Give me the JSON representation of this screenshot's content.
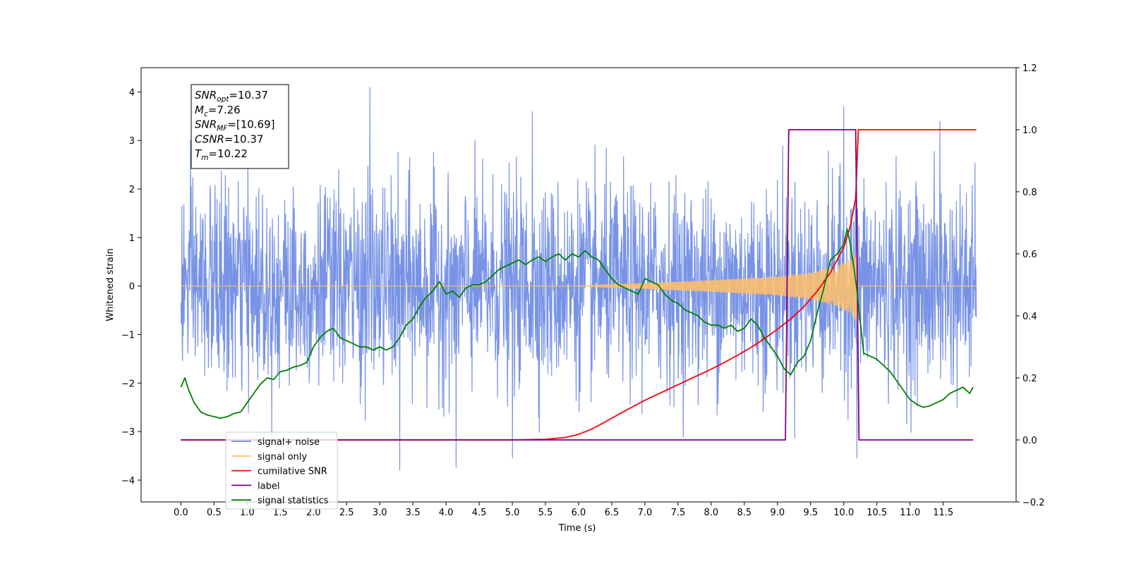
{
  "chart_data": {
    "type": "line",
    "xlabel": "Time (s)",
    "ylabel": "Whitened strain",
    "xlim": [
      -0.6,
      12.6
    ],
    "x_ticks": [
      "0.0",
      "0.5",
      "1.0",
      "1.5",
      "2.0",
      "2.5",
      "3.0",
      "3.5",
      "4.0",
      "4.5",
      "5.0",
      "5.5",
      "6.0",
      "6.5",
      "7.0",
      "7.5",
      "8.0",
      "8.5",
      "9.0",
      "9.5",
      "10.0",
      "10.5",
      "11.0",
      "11.5"
    ],
    "y_left": {
      "lim": [
        -4.45,
        4.5
      ],
      "ticks": [
        "4",
        "3",
        "2",
        "1",
        "0",
        "−1",
        "−2",
        "−3",
        "−4"
      ]
    },
    "y_right": {
      "lim": [
        -0.2,
        1.2
      ],
      "ticks": [
        "1.2",
        "1.0",
        "0.8",
        "0.6",
        "0.4",
        "0.2",
        "0.0",
        "−0.2"
      ]
    },
    "grid": false,
    "legend": {
      "placement": "lower-left",
      "entries": [
        {
          "label": "signal+ noise",
          "color": "#6c8ae4"
        },
        {
          "label": "signal only",
          "color": "#ffbf69"
        },
        {
          "label": "cumilative SNR",
          "color": "#ff0000"
        },
        {
          "label": "label",
          "color": "#800080"
        },
        {
          "label": "signal statistics",
          "color": "#008000"
        }
      ]
    },
    "annotation": {
      "lines": [
        {
          "sym": "SNR",
          "sub": "opt",
          "rest": "=10.37"
        },
        {
          "sym": "M",
          "sub": "c",
          "rest": "=7.26"
        },
        {
          "sym": "SNR",
          "sub": "MF",
          "rest": "=[10.69]"
        },
        {
          "sym": "CSNR",
          "sub": "",
          "rest": "=10.37"
        },
        {
          "sym": "T",
          "sub": "m",
          "rest": "=10.22"
        }
      ]
    },
    "series": [
      {
        "name": "signal+ noise",
        "axis": "left",
        "color": "#6c8ae4",
        "x_range": [
          0,
          12
        ],
        "y_range_approx": [
          -3.8,
          4.1
        ],
        "peaks": [
          {
            "x": 2.85,
            "y": 4.1
          },
          {
            "x": 5.3,
            "y": 3.6
          },
          {
            "x": 10.0,
            "y": 3.7
          },
          {
            "x": 11.45,
            "y": 3.4
          },
          {
            "x": 3.3,
            "y": -3.8
          },
          {
            "x": 4.15,
            "y": -3.75
          },
          {
            "x": 5.0,
            "y": -3.55
          },
          {
            "x": 10.2,
            "y": -3.55
          }
        ]
      },
      {
        "name": "signal only",
        "axis": "left",
        "color": "#ffbf69",
        "chirp_start": 6.0,
        "merger_time": 10.22,
        "envelope": [
          [
            6.0,
            0.0
          ],
          [
            6.5,
            0.03
          ],
          [
            7.0,
            0.06
          ],
          [
            7.5,
            0.09
          ],
          [
            8.0,
            0.12
          ],
          [
            8.5,
            0.16
          ],
          [
            9.0,
            0.2
          ],
          [
            9.5,
            0.28
          ],
          [
            9.9,
            0.42
          ],
          [
            10.1,
            0.58
          ],
          [
            10.2,
            0.75
          ],
          [
            10.22,
            0.0
          ]
        ]
      },
      {
        "name": "cumilative SNR",
        "axis": "right",
        "color": "#ff0000",
        "x": [
          0,
          5.0,
          5.5,
          5.8,
          6.0,
          6.2,
          6.4,
          6.6,
          6.8,
          7.0,
          7.2,
          7.4,
          7.6,
          7.8,
          8.0,
          8.2,
          8.4,
          8.6,
          8.8,
          9.0,
          9.2,
          9.4,
          9.6,
          9.8,
          10.0,
          10.1,
          10.18,
          10.22,
          12.0
        ],
        "y": [
          0,
          0,
          0.002,
          0.008,
          0.018,
          0.035,
          0.058,
          0.082,
          0.105,
          0.128,
          0.148,
          0.168,
          0.188,
          0.208,
          0.228,
          0.25,
          0.273,
          0.298,
          0.326,
          0.357,
          0.39,
          0.43,
          0.48,
          0.54,
          0.62,
          0.69,
          0.78,
          1.0,
          1.0
        ]
      },
      {
        "name": "label",
        "axis": "right",
        "color": "#800080",
        "x": [
          0,
          9.12,
          9.17,
          10.18,
          10.23,
          11.95
        ],
        "y": [
          0,
          0,
          1,
          1,
          0,
          0
        ]
      },
      {
        "name": "signal statistics",
        "axis": "right",
        "color": "#008000",
        "x": [
          0,
          0.06,
          0.12,
          0.2,
          0.3,
          0.4,
          0.5,
          0.6,
          0.7,
          0.8,
          0.9,
          1.0,
          1.1,
          1.2,
          1.3,
          1.4,
          1.5,
          1.6,
          1.7,
          1.8,
          1.9,
          2.0,
          2.1,
          2.2,
          2.3,
          2.4,
          2.5,
          2.6,
          2.7,
          2.8,
          2.9,
          3.0,
          3.1,
          3.2,
          3.3,
          3.4,
          3.5,
          3.6,
          3.7,
          3.8,
          3.9,
          4.0,
          4.1,
          4.2,
          4.3,
          4.4,
          4.5,
          4.6,
          4.7,
          4.8,
          4.9,
          5.0,
          5.1,
          5.2,
          5.3,
          5.4,
          5.5,
          5.6,
          5.7,
          5.8,
          5.9,
          6.0,
          6.1,
          6.2,
          6.3,
          6.4,
          6.5,
          6.6,
          6.7,
          6.8,
          6.9,
          7.0,
          7.1,
          7.2,
          7.3,
          7.4,
          7.5,
          7.6,
          7.7,
          7.8,
          7.9,
          8.0,
          8.1,
          8.2,
          8.3,
          8.4,
          8.5,
          8.6,
          8.7,
          8.8,
          8.9,
          9.0,
          9.1,
          9.2,
          9.3,
          9.4,
          9.5,
          9.6,
          9.7,
          9.8,
          9.9,
          10.0,
          10.05,
          10.1,
          10.15,
          10.2,
          10.25,
          10.3,
          10.4,
          10.5,
          10.6,
          10.7,
          10.8,
          10.9,
          11.0,
          11.1,
          11.2,
          11.3,
          11.4,
          11.5,
          11.6,
          11.7,
          11.8,
          11.9,
          11.95
        ],
        "y": [
          0.17,
          0.2,
          0.16,
          0.12,
          0.09,
          0.08,
          0.075,
          0.07,
          0.075,
          0.085,
          0.09,
          0.12,
          0.15,
          0.18,
          0.2,
          0.195,
          0.22,
          0.225,
          0.235,
          0.24,
          0.25,
          0.3,
          0.33,
          0.35,
          0.36,
          0.33,
          0.32,
          0.31,
          0.3,
          0.3,
          0.29,
          0.3,
          0.29,
          0.3,
          0.33,
          0.37,
          0.39,
          0.43,
          0.46,
          0.48,
          0.51,
          0.47,
          0.48,
          0.46,
          0.49,
          0.5,
          0.5,
          0.51,
          0.53,
          0.55,
          0.56,
          0.57,
          0.58,
          0.565,
          0.58,
          0.59,
          0.575,
          0.59,
          0.6,
          0.58,
          0.6,
          0.59,
          0.61,
          0.59,
          0.58,
          0.55,
          0.52,
          0.5,
          0.49,
          0.48,
          0.47,
          0.52,
          0.51,
          0.5,
          0.47,
          0.45,
          0.44,
          0.42,
          0.41,
          0.4,
          0.38,
          0.37,
          0.37,
          0.36,
          0.37,
          0.35,
          0.36,
          0.39,
          0.37,
          0.33,
          0.3,
          0.27,
          0.23,
          0.21,
          0.25,
          0.27,
          0.32,
          0.41,
          0.49,
          0.58,
          0.6,
          0.63,
          0.68,
          0.63,
          0.56,
          0.48,
          0.38,
          0.28,
          0.27,
          0.26,
          0.24,
          0.22,
          0.19,
          0.16,
          0.13,
          0.115,
          0.105,
          0.11,
          0.12,
          0.13,
          0.15,
          0.16,
          0.17,
          0.15,
          0.17
        ]
      }
    ]
  }
}
